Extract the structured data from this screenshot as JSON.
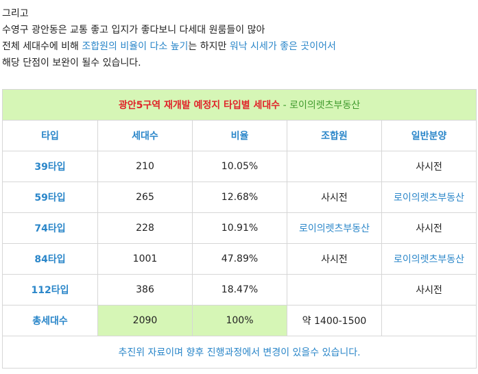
{
  "intro": {
    "line1": "그리고",
    "line2": "수영구 광안동은 교통 좋고 입지가 좋다보니 다세대 원룸들이 많아",
    "line3_a": "전체 세대수에 비해 ",
    "line3_b": "조합원의 비율이 다소 높기",
    "line3_c": "는 하지만 ",
    "line3_d": "워낙 시세가 좋은 곳이어서",
    "line4": "해당 단점이 보완이 될수 있습니다."
  },
  "table": {
    "caption_main": "광안5구역 재개발 예정지 타입별 세대수",
    "caption_sep": " - ",
    "caption_source": "로이의렛츠부동산",
    "headers": [
      "타입",
      "세대수",
      "비율",
      "조합원",
      "일반분양"
    ],
    "rows": [
      {
        "type": "39타입",
        "units": "210",
        "ratio": "10.05%",
        "member": "",
        "general": "사시전"
      },
      {
        "type": "59타입",
        "units": "265",
        "ratio": "12.68%",
        "member": "사시전",
        "general": "로이의렛츠부동산"
      },
      {
        "type": "74타입",
        "units": "228",
        "ratio": "10.91%",
        "member": "로이의렛츠부동산",
        "general": "사시전"
      },
      {
        "type": "84타입",
        "units": "1001",
        "ratio": "47.89%",
        "member": "사시전",
        "general": "로이의렛츠부동산"
      },
      {
        "type": "112타입",
        "units": "386",
        "ratio": "18.47%",
        "member": "",
        "general": "사시전"
      }
    ],
    "total": {
      "label": "총세대수",
      "units": "2090",
      "ratio": "100%",
      "member": "약 1400-1500",
      "general": ""
    },
    "note": "추진위 자료이며 향후 진행과정에서 변경이 있을수 있습니다."
  },
  "colors": {
    "accent_blue": "#2a86c9",
    "title_red": "#e0242a",
    "source_green": "#3f9a2c",
    "highlight_green": "#d6f6b6"
  }
}
